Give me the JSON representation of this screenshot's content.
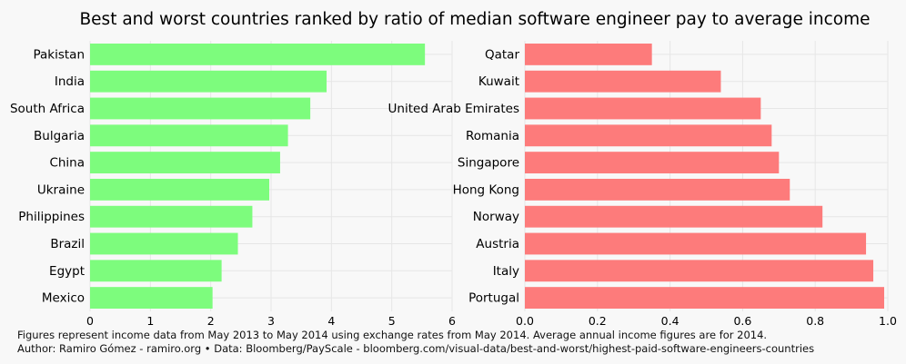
{
  "title": "Best and worst countries ranked by ratio of median software engineer pay to average income",
  "footer": {
    "line1": "Figures represent income data from May 2013 to May 2014 using exchange rates from May 2014. Average annual income figures are for 2014.",
    "line2": "Author: Ramiro Gómez - ramiro.org • Data: Bloomberg/PayScale - bloomberg.com/visual-data/best-and-worst/highest-paid-software-engineers-countries"
  },
  "chart_data": [
    {
      "type": "bar",
      "orientation": "horizontal",
      "categories": [
        "Pakistan",
        "India",
        "South Africa",
        "Bulgaria",
        "China",
        "Ukraine",
        "Philippines",
        "Brazil",
        "Egypt",
        "Mexico"
      ],
      "values": [
        5.55,
        3.92,
        3.65,
        3.28,
        3.15,
        2.97,
        2.69,
        2.45,
        2.18,
        2.03
      ],
      "xlim": [
        0,
        6
      ],
      "xticks": [
        "0",
        "1",
        "2",
        "3",
        "4",
        "5",
        "6"
      ],
      "color": "#7dfc7d",
      "grid": true
    },
    {
      "type": "bar",
      "orientation": "horizontal",
      "categories": [
        "Qatar",
        "Kuwait",
        "United Arab Emirates",
        "Romania",
        "Singapore",
        "Hong Kong",
        "Norway",
        "Austria",
        "Italy",
        "Portugal"
      ],
      "values": [
        0.35,
        0.54,
        0.65,
        0.68,
        0.7,
        0.73,
        0.82,
        0.94,
        0.96,
        0.99
      ],
      "xlim": [
        0,
        1.0
      ],
      "xticks": [
        "0.0",
        "0.2",
        "0.4",
        "0.6",
        "0.8",
        "1.0"
      ],
      "color": "#fd7b7b",
      "grid": true
    }
  ]
}
